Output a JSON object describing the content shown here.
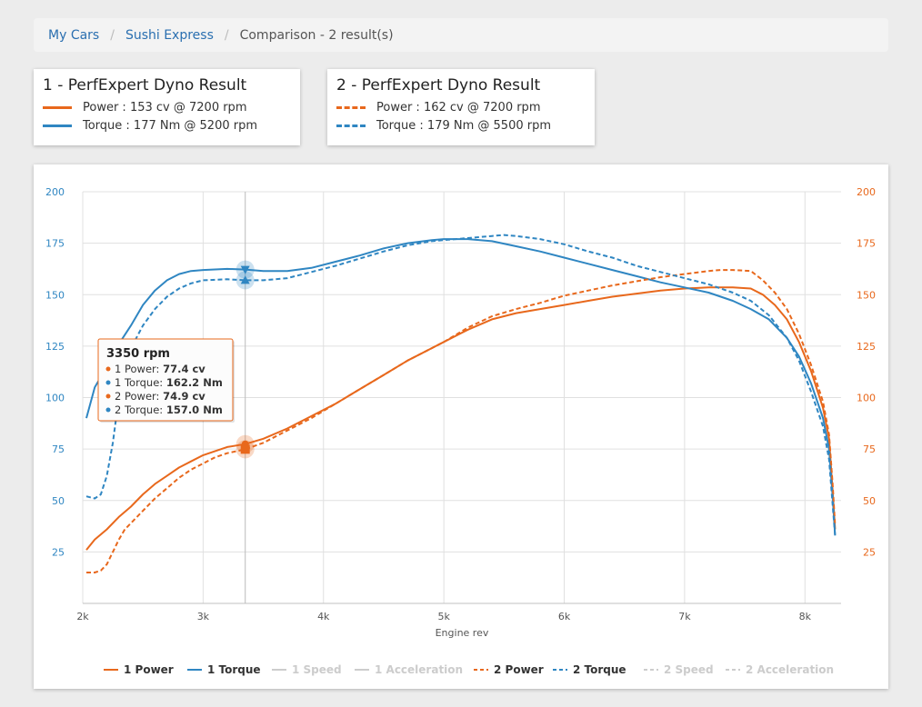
{
  "breadcrumb": {
    "items": [
      {
        "label": "My Cars"
      },
      {
        "label": "Sushi Express"
      },
      {
        "label": "Comparison - 2 result(s)"
      }
    ]
  },
  "cards": [
    {
      "title": "1 - PerfExpert Dyno Result",
      "power": "Power : 153 cv @ 7200 rpm",
      "torque": "Torque : 177 Nm @ 5200 rpm"
    },
    {
      "title": "2 - PerfExpert Dyno Result",
      "power": "Power : 162 cv @ 7200 rpm",
      "torque": "Torque : 179 Nm @ 5500 rpm"
    }
  ],
  "colors": {
    "power": "#e8681c",
    "torque": "#2f86c2",
    "inactive": "#cccccc",
    "grid": "#e0e0e0"
  },
  "tooltip": {
    "title": "3350 rpm",
    "rows": [
      {
        "label": "1 Power: ",
        "value": "77.4 cv",
        "color": "#e8681c"
      },
      {
        "label": "1 Torque: ",
        "value": "162.2 Nm",
        "color": "#2f86c2"
      },
      {
        "label": "2 Power: ",
        "value": "74.9 cv",
        "color": "#e8681c"
      },
      {
        "label": "2 Torque: ",
        "value": "157.0 Nm",
        "color": "#2f86c2"
      }
    ]
  },
  "chart_data": {
    "type": "line",
    "xlabel": "Engine rev",
    "xlim": [
      2000,
      8300
    ],
    "ylim": [
      0,
      200
    ],
    "x_ticks": [
      2000,
      3000,
      4000,
      5000,
      6000,
      7000,
      8000
    ],
    "x_tick_labels": [
      "2k",
      "3k",
      "4k",
      "5k",
      "6k",
      "7k",
      "8k"
    ],
    "y_ticks": [
      25,
      50,
      75,
      100,
      125,
      150,
      175,
      200
    ],
    "grid": true,
    "legend_position": "bottom",
    "crosshair_x": 3350,
    "series": [
      {
        "name": "1 Power",
        "style": "solid",
        "color": "#e8681c",
        "active": true,
        "x": [
          2030,
          2100,
          2200,
          2300,
          2400,
          2500,
          2600,
          2700,
          2800,
          2900,
          3000,
          3100,
          3200,
          3350,
          3500,
          3700,
          3900,
          4100,
          4300,
          4500,
          4700,
          4900,
          5000,
          5200,
          5400,
          5600,
          5800,
          6000,
          6200,
          6400,
          6600,
          6800,
          7000,
          7200,
          7400,
          7550,
          7650,
          7750,
          7850,
          7950,
          8050,
          8150,
          8200,
          8230,
          8250
        ],
        "y": [
          26,
          31,
          36,
          42,
          47,
          53,
          58,
          62,
          66,
          69,
          72,
          74,
          76,
          77.4,
          80,
          85,
          91,
          97,
          104,
          111,
          118,
          124,
          127,
          133,
          138,
          141,
          143,
          145,
          147,
          149,
          150.5,
          152,
          153,
          153.5,
          153.5,
          153,
          150,
          145,
          138,
          127,
          113,
          95,
          80,
          55,
          36
        ]
      },
      {
        "name": "1 Torque",
        "style": "solid",
        "color": "#2f86c2",
        "active": true,
        "x": [
          2030,
          2100,
          2200,
          2300,
          2400,
          2500,
          2600,
          2700,
          2800,
          2900,
          3000,
          3200,
          3350,
          3500,
          3700,
          3900,
          4100,
          4300,
          4500,
          4700,
          4900,
          5000,
          5200,
          5400,
          5600,
          5800,
          6000,
          6200,
          6400,
          6600,
          6800,
          7000,
          7200,
          7400,
          7550,
          7700,
          7850,
          7950,
          8050,
          8150,
          8200,
          8230,
          8250
        ],
        "y": [
          90,
          105,
          115,
          126,
          135,
          145,
          152,
          157,
          160,
          161.5,
          162,
          162.5,
          162.2,
          161.5,
          161.5,
          163,
          166,
          169,
          172.5,
          175,
          176.5,
          177,
          177,
          176,
          173.5,
          171,
          168,
          165,
          162,
          159,
          156,
          153.5,
          151,
          147,
          143,
          138,
          129,
          120,
          107,
          90,
          75,
          52,
          33
        ]
      },
      {
        "name": "1 Speed",
        "style": "solid",
        "color": "#cccccc",
        "active": false,
        "x": [],
        "y": []
      },
      {
        "name": "1 Acceleration",
        "style": "solid",
        "color": "#cccccc",
        "active": false,
        "x": [],
        "y": []
      },
      {
        "name": "2 Power",
        "style": "dashed",
        "color": "#e8681c",
        "active": true,
        "x": [
          2030,
          2100,
          2150,
          2200,
          2250,
          2300,
          2350,
          2400,
          2500,
          2600,
          2700,
          2800,
          2900,
          3000,
          3100,
          3200,
          3350,
          3500,
          3700,
          3900,
          4100,
          4300,
          4500,
          4700,
          4900,
          5000,
          5200,
          5400,
          5600,
          5800,
          6000,
          6200,
          6400,
          6600,
          6800,
          7000,
          7200,
          7300,
          7400,
          7550,
          7650,
          7750,
          7850,
          7950,
          8050,
          8150,
          8200,
          8230,
          8250
        ],
        "y": [
          15,
          15,
          16,
          19,
          25,
          31,
          36,
          39,
          45,
          51,
          56,
          61,
          65,
          68,
          71,
          73,
          74.9,
          78,
          84,
          90,
          97,
          104,
          111,
          118,
          124,
          127,
          134,
          139.5,
          143,
          146,
          149.5,
          152,
          154.5,
          156.5,
          158.5,
          160,
          161.5,
          162,
          162,
          161.5,
          157,
          151,
          143,
          131,
          116,
          98,
          82,
          58,
          38
        ]
      },
      {
        "name": "2 Torque",
        "style": "dashed",
        "color": "#2f86c2",
        "active": true,
        "x": [
          2030,
          2100,
          2150,
          2200,
          2250,
          2300,
          2350,
          2400,
          2500,
          2600,
          2700,
          2800,
          2900,
          3000,
          3200,
          3350,
          3500,
          3700,
          3900,
          4100,
          4300,
          4500,
          4700,
          4900,
          5000,
          5200,
          5400,
          5500,
          5600,
          5800,
          6000,
          6200,
          6400,
          6600,
          6800,
          7000,
          7200,
          7400,
          7550,
          7700,
          7850,
          7950,
          8050,
          8150,
          8200,
          8230,
          8250
        ],
        "y": [
          52,
          51,
          53,
          62,
          78,
          100,
          115,
          124,
          135,
          143,
          149,
          153,
          155.5,
          157,
          157.5,
          157,
          157,
          158,
          161,
          164,
          167.5,
          171,
          174,
          176,
          176.5,
          177.5,
          178.5,
          179,
          178.5,
          177,
          174.5,
          171,
          168,
          164,
          161,
          158,
          155,
          151,
          147,
          140,
          129,
          118,
          103,
          86,
          70,
          48,
          33
        ]
      },
      {
        "name": "2 Speed",
        "style": "dashed",
        "color": "#cccccc",
        "active": false,
        "x": [],
        "y": []
      },
      {
        "name": "2 Acceleration",
        "style": "dashed",
        "color": "#cccccc",
        "active": false,
        "x": [],
        "y": []
      }
    ]
  }
}
